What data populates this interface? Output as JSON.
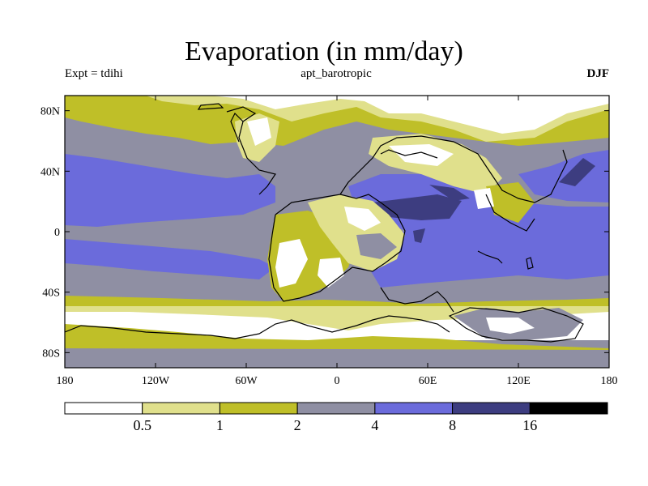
{
  "title": "Evaporation (in mm/day)",
  "left_string": "Expt = tdihi",
  "center_string": "apt_barotropic",
  "right_string": "DJF",
  "map": {
    "projection": "cylindrical equidistant",
    "lon_range": [
      -180,
      180
    ],
    "lat_range": [
      -90,
      90
    ],
    "lat_ticks": [
      {
        "value": 80,
        "label": "80N"
      },
      {
        "value": 40,
        "label": "40N"
      },
      {
        "value": 0,
        "label": "0"
      },
      {
        "value": -40,
        "label": "40S"
      },
      {
        "value": -80,
        "label": "80S"
      }
    ],
    "lon_ticks": [
      {
        "value": -180,
        "label": "180"
      },
      {
        "value": -120,
        "label": "120W"
      },
      {
        "value": -60,
        "label": "60W"
      },
      {
        "value": 0,
        "label": "0"
      },
      {
        "value": 60,
        "label": "60E"
      },
      {
        "value": 120,
        "label": "120E"
      },
      {
        "value": 180,
        "label": "180"
      }
    ]
  },
  "colorbar": {
    "levels": [
      "0.5",
      "1",
      "2",
      "4",
      "8",
      "16"
    ],
    "colors": [
      "#ffffff",
      "#e0e08c",
      "#bfbf28",
      "#8f8fa3",
      "#6b6bdb",
      "#3d3d80",
      "#000000"
    ]
  }
}
